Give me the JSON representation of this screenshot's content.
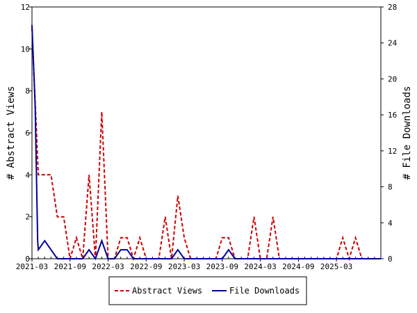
{
  "chart_data": {
    "type": "line",
    "title": "",
    "xlabel": "",
    "ylabel_left": "# Abstract Views",
    "ylabel_right": "# File Downloads",
    "ylim_left": [
      0,
      12
    ],
    "ylim_right": [
      0,
      28
    ],
    "yticks_left": [
      0,
      2,
      4,
      6,
      8,
      10,
      12
    ],
    "yticks_right": [
      0,
      4,
      8,
      12,
      16,
      20,
      24,
      28
    ],
    "x_start": "2021-03",
    "x_end": "2025-10",
    "xticks": [
      "2021-03",
      "2021-09",
      "2022-03",
      "2022-09",
      "2023-03",
      "2023-09",
      "2024-03",
      "2024-09",
      "2025-03"
    ],
    "months": [
      "2021-03",
      "2021-04",
      "2021-05",
      "2021-06",
      "2021-07",
      "2021-08",
      "2021-09",
      "2021-10",
      "2021-11",
      "2021-12",
      "2022-01",
      "2022-02",
      "2022-03",
      "2022-04",
      "2022-05",
      "2022-06",
      "2022-07",
      "2022-08",
      "2022-09",
      "2022-10",
      "2022-11",
      "2022-12",
      "2023-01",
      "2023-02",
      "2023-03",
      "2023-04",
      "2023-05",
      "2023-06",
      "2023-07",
      "2023-08",
      "2023-09",
      "2023-10",
      "2023-11",
      "2023-12",
      "2024-01",
      "2024-02",
      "2024-03",
      "2024-04",
      "2024-05",
      "2024-06",
      "2024-07",
      "2024-08",
      "2024-09",
      "2024-10",
      "2024-11",
      "2024-12",
      "2025-01",
      "2025-02",
      "2025-03",
      "2025-04",
      "2025-05",
      "2025-06",
      "2025-07",
      "2025-08",
      "2025-09",
      "2025-10"
    ],
    "series": [
      {
        "name": "Abstract Views",
        "axis": "left",
        "color": "#cc0000",
        "style": "dashed",
        "points": [
          [
            0.0,
            11
          ],
          [
            1.0,
            4
          ],
          [
            3.0,
            4
          ],
          [
            4.0,
            2
          ],
          [
            5.0,
            2
          ],
          [
            6.0,
            0
          ],
          [
            7.0,
            1
          ],
          [
            8.0,
            0
          ],
          [
            9.0,
            4
          ],
          [
            10.0,
            0
          ],
          [
            11.0,
            7
          ],
          [
            12.0,
            0
          ],
          [
            13.0,
            0
          ],
          [
            14.0,
            1
          ],
          [
            15.0,
            1
          ],
          [
            16.0,
            0
          ],
          [
            17.0,
            1
          ],
          [
            18.0,
            0
          ],
          [
            19.0,
            0
          ],
          [
            20.0,
            0
          ],
          [
            21.0,
            2
          ],
          [
            22.0,
            0
          ],
          [
            23.0,
            3
          ],
          [
            24.0,
            1
          ],
          [
            25.0,
            0
          ],
          [
            26.0,
            0
          ],
          [
            27.0,
            0
          ],
          [
            28.0,
            0
          ],
          [
            29.0,
            0
          ],
          [
            30.0,
            1
          ],
          [
            31.0,
            1
          ],
          [
            32.0,
            0
          ],
          [
            33.0,
            0
          ],
          [
            34.0,
            0
          ],
          [
            35.0,
            2
          ],
          [
            36.0,
            0
          ],
          [
            37.0,
            0
          ],
          [
            38.0,
            2
          ],
          [
            39.0,
            0
          ],
          [
            40.0,
            0
          ],
          [
            41.0,
            0
          ],
          [
            42.0,
            0
          ],
          [
            43.0,
            0
          ],
          [
            44.0,
            0
          ],
          [
            45.0,
            0
          ],
          [
            46.0,
            0
          ],
          [
            47.0,
            0
          ],
          [
            48.0,
            0
          ],
          [
            49.0,
            1
          ],
          [
            50.0,
            0
          ],
          [
            51.0,
            1
          ],
          [
            52.0,
            0
          ],
          [
            53.0,
            0
          ],
          [
            54.0,
            0
          ],
          [
            55.0,
            0
          ]
        ]
      },
      {
        "name": "File Downloads",
        "axis": "right",
        "color": "#000099",
        "style": "solid",
        "points": [
          [
            0.0,
            26
          ],
          [
            0.5,
            17
          ],
          [
            0.9,
            2
          ],
          [
            1.0,
            1
          ],
          [
            2.0,
            2
          ],
          [
            3.0,
            1
          ],
          [
            4.0,
            0
          ],
          [
            5.0,
            0
          ],
          [
            6.0,
            0
          ],
          [
            7.0,
            0
          ],
          [
            8.0,
            0
          ],
          [
            9.0,
            1
          ],
          [
            10.0,
            0
          ],
          [
            11.0,
            2
          ],
          [
            12.0,
            0
          ],
          [
            13.0,
            0
          ],
          [
            14.0,
            1
          ],
          [
            15.0,
            1
          ],
          [
            16.0,
            0
          ],
          [
            17.0,
            0
          ],
          [
            18.0,
            0
          ],
          [
            19.0,
            0
          ],
          [
            20.0,
            0
          ],
          [
            21.0,
            0
          ],
          [
            22.0,
            0
          ],
          [
            23.0,
            1
          ],
          [
            24.0,
            0
          ],
          [
            25.0,
            0
          ],
          [
            26.0,
            0
          ],
          [
            27.0,
            0
          ],
          [
            28.0,
            0
          ],
          [
            29.0,
            0
          ],
          [
            30.0,
            0
          ],
          [
            31.0,
            1
          ],
          [
            32.0,
            0
          ],
          [
            33.0,
            0
          ],
          [
            34.0,
            0
          ],
          [
            35.0,
            0
          ],
          [
            36.0,
            0
          ],
          [
            37.0,
            0
          ],
          [
            38.0,
            0
          ],
          [
            39.0,
            0
          ],
          [
            40.0,
            0
          ],
          [
            41.0,
            0
          ],
          [
            42.0,
            0
          ],
          [
            43.0,
            0
          ],
          [
            44.0,
            0
          ],
          [
            45.0,
            0
          ],
          [
            46.0,
            0
          ],
          [
            47.0,
            0
          ],
          [
            48.0,
            0
          ],
          [
            49.0,
            0
          ],
          [
            50.0,
            0
          ],
          [
            51.0,
            0
          ],
          [
            52.0,
            0
          ],
          [
            53.0,
            0
          ],
          [
            54.0,
            0
          ],
          [
            55.0,
            0
          ]
        ]
      }
    ],
    "legend": {
      "placement": "bottom-center",
      "entries": [
        "Abstract Views",
        "File Downloads"
      ]
    },
    "grid": false
  }
}
